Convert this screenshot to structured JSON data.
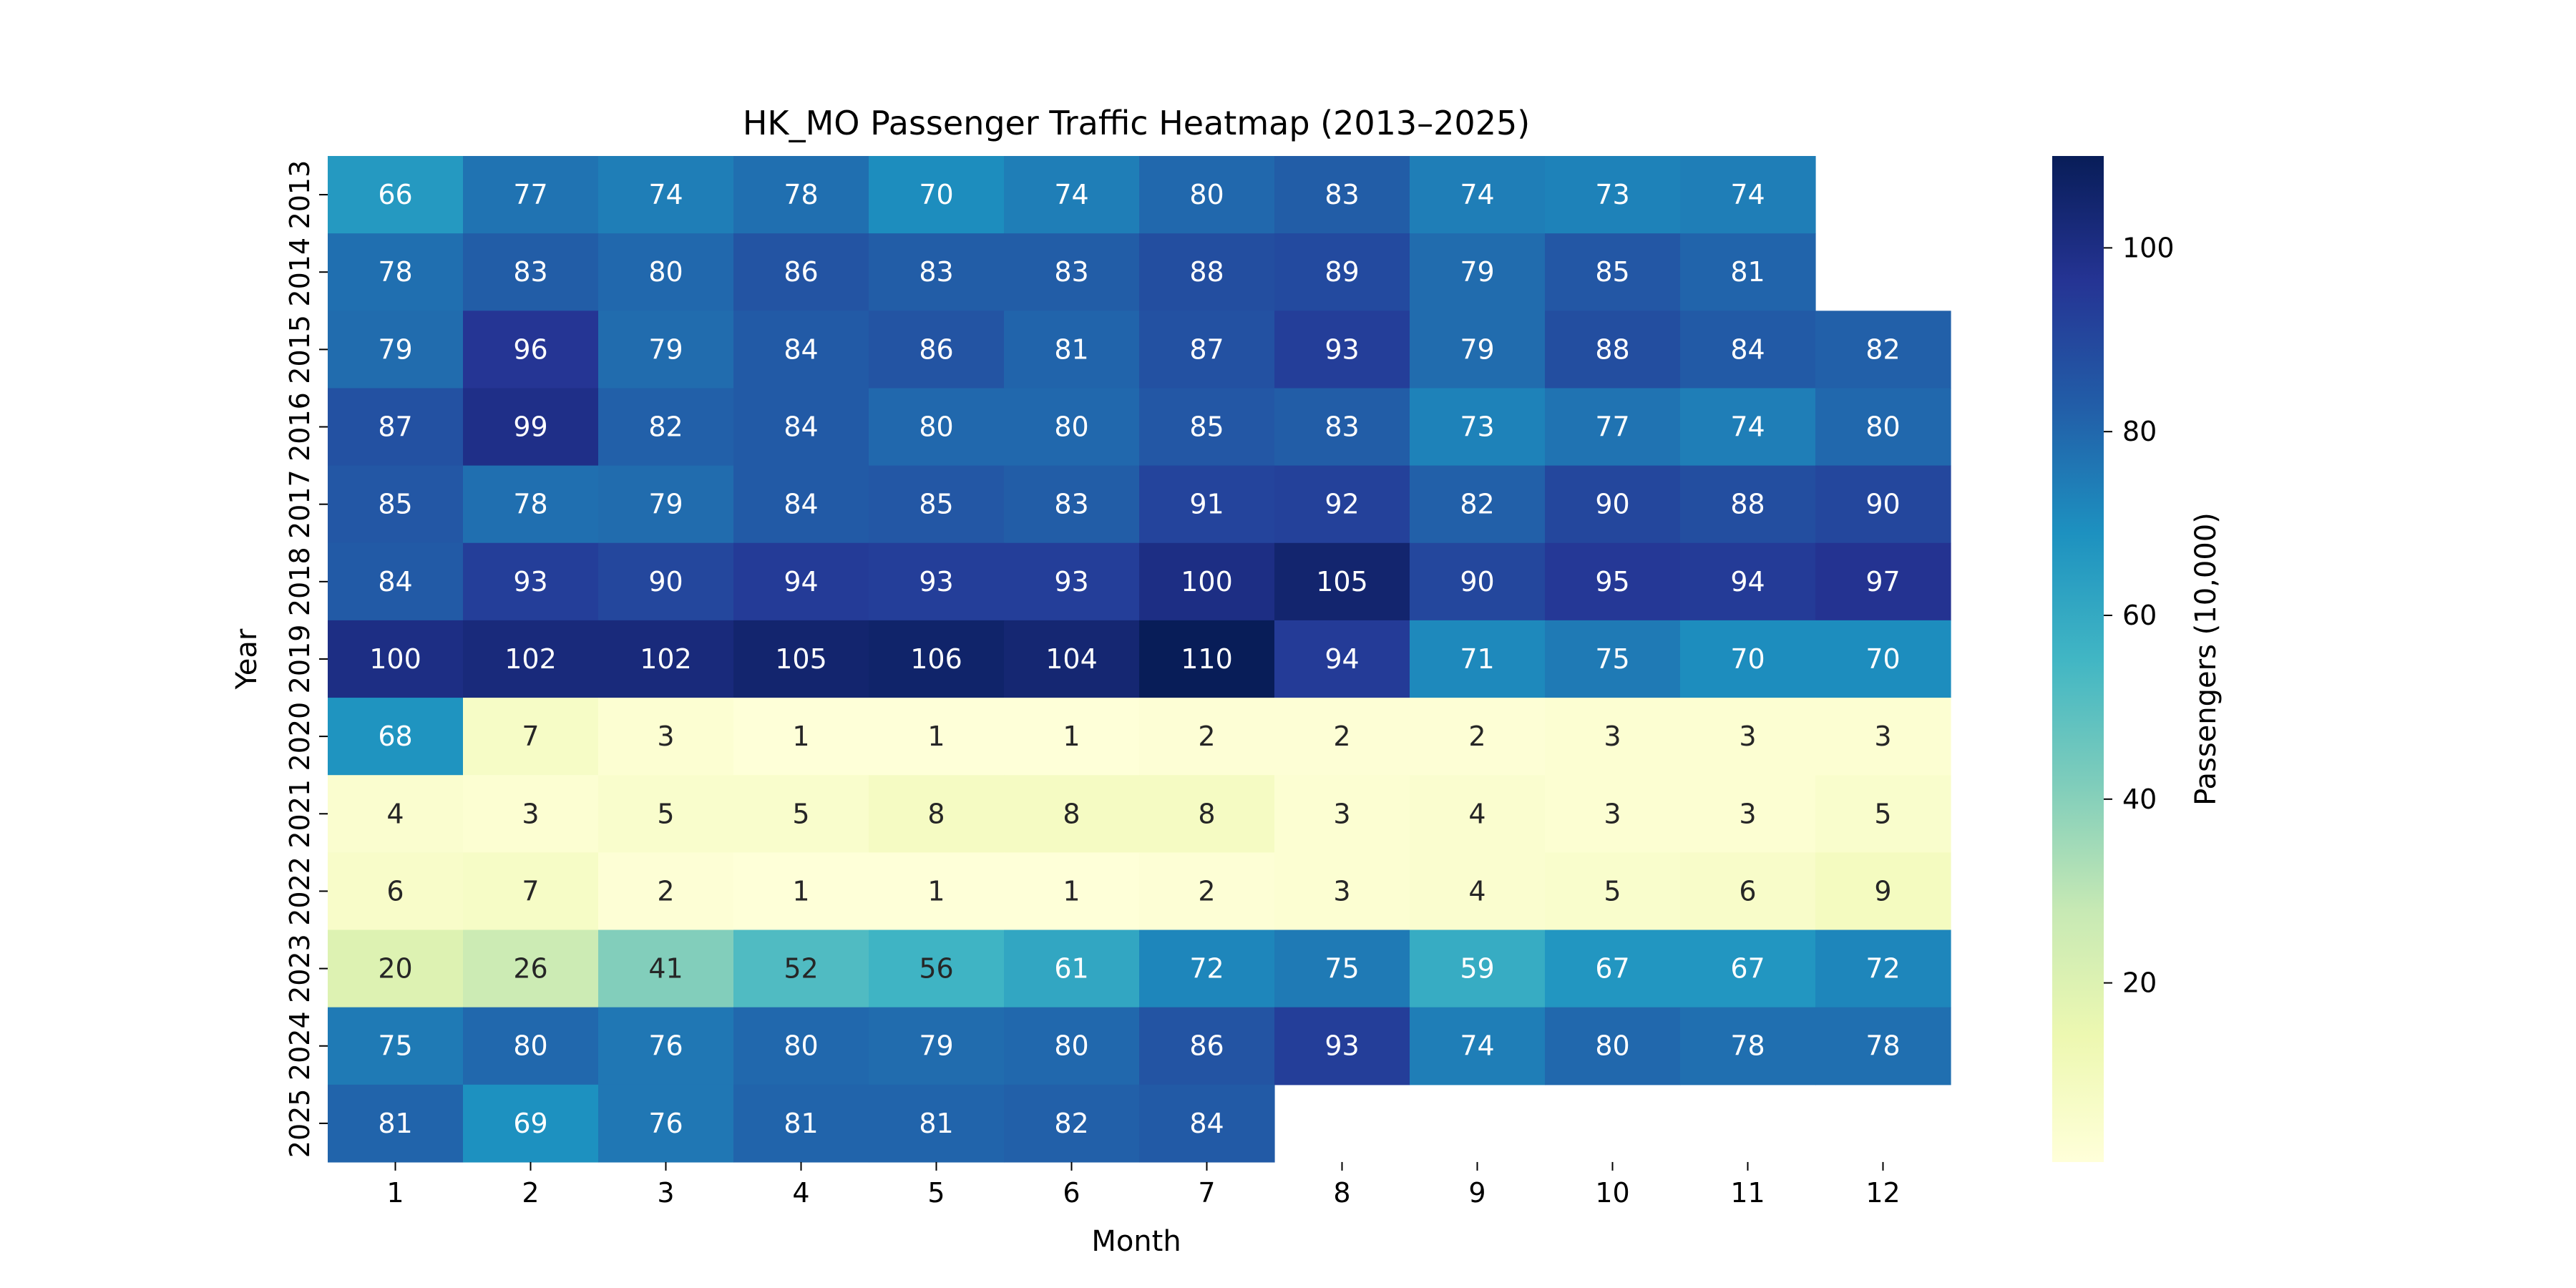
{
  "chart_data": {
    "type": "heatmap",
    "title": "HK_MO Passenger Traffic Heatmap (2013–2025)",
    "xlabel": "Month",
    "ylabel": "Year",
    "colorbar_label": "Passengers (10,000)",
    "colormap": "YlGnBu",
    "colorbar_range": [
      0.5,
      110
    ],
    "colorbar_ticks": [
      "20",
      "40",
      "60",
      "80",
      "100"
    ],
    "x_categories": [
      "1",
      "2",
      "3",
      "4",
      "5",
      "6",
      "7",
      "8",
      "9",
      "10",
      "11",
      "12"
    ],
    "y_categories": [
      "2013",
      "2014",
      "2015",
      "2016",
      "2017",
      "2018",
      "2019",
      "2020",
      "2021",
      "2022",
      "2023",
      "2024",
      "2025"
    ],
    "values": [
      [
        66,
        77,
        74,
        78,
        70,
        74,
        80,
        83,
        74,
        73,
        74,
        null
      ],
      [
        78,
        83,
        80,
        86,
        83,
        83,
        88,
        89,
        79,
        85,
        81,
        null
      ],
      [
        79,
        96,
        79,
        84,
        86,
        81,
        87,
        93,
        79,
        88,
        84,
        82
      ],
      [
        87,
        99,
        82,
        84,
        80,
        80,
        85,
        83,
        73,
        77,
        74,
        80
      ],
      [
        85,
        78,
        79,
        84,
        85,
        83,
        91,
        92,
        82,
        90,
        88,
        90
      ],
      [
        84,
        93,
        90,
        94,
        93,
        93,
        100,
        105,
        90,
        95,
        94,
        97
      ],
      [
        100,
        102,
        102,
        105,
        106,
        104,
        110,
        94,
        71,
        75,
        70,
        70
      ],
      [
        68,
        7,
        3,
        1,
        1,
        1,
        2,
        2,
        2,
        3,
        3,
        3
      ],
      [
        4,
        3,
        5,
        5,
        8,
        8,
        8,
        3,
        4,
        3,
        3,
        5
      ],
      [
        6,
        7,
        2,
        1,
        1,
        1,
        2,
        3,
        4,
        5,
        6,
        9
      ],
      [
        20,
        26,
        41,
        52,
        56,
        61,
        72,
        75,
        59,
        67,
        67,
        72
      ],
      [
        75,
        80,
        76,
        80,
        79,
        80,
        86,
        93,
        74,
        80,
        78,
        78
      ],
      [
        81,
        69,
        76,
        81,
        81,
        82,
        84,
        null,
        null,
        null,
        null,
        null
      ]
    ]
  }
}
